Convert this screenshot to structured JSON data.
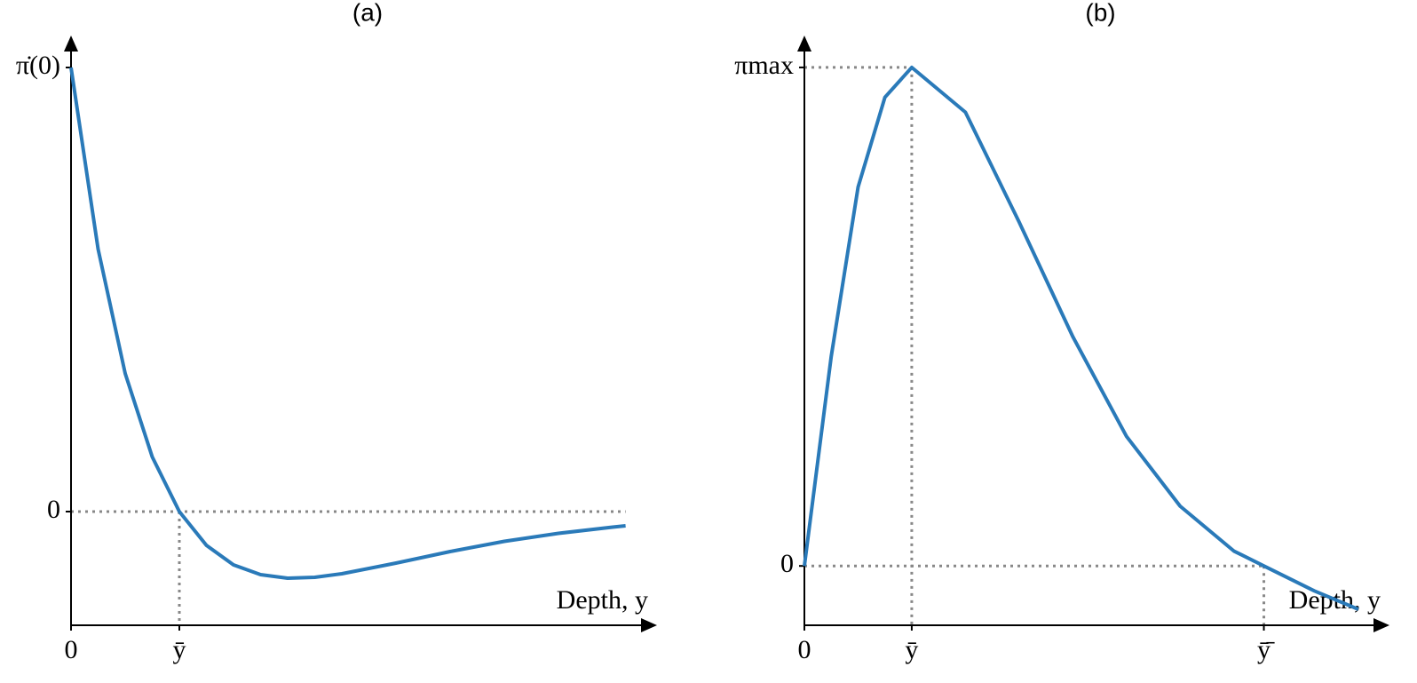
{
  "chart_data": [
    {
      "type": "line",
      "title": "(a)",
      "x_label": "Depth, y",
      "x": [
        0,
        0.25,
        0.5,
        0.75,
        1,
        1.25,
        1.5,
        1.75,
        2,
        2.25,
        2.5,
        3,
        3.5,
        4,
        4.5,
        5,
        5.12
      ],
      "series": [
        {
          "color": "#2a7ab9",
          "values": [
            1,
            0.591,
            0.311,
            0.123,
            0,
            -0.076,
            -0.12,
            -0.142,
            -0.15,
            -0.148,
            -0.14,
            -0.116,
            -0.09,
            -0.067,
            -0.049,
            -0.035,
            -0.032
          ]
        }
      ],
      "xlim": [
        0,
        5.41
      ],
      "ylim": [
        -0.256,
        1.072
      ],
      "xticks": [
        0,
        {
          "value": 1,
          "label": "ȳ"
        }
      ],
      "yticks": [
        0,
        {
          "value": 1,
          "label": "π̇(0)"
        }
      ],
      "grid": false
    },
    {
      "type": "line",
      "title": "(b)",
      "x_label": "Depth, y",
      "x": [
        0,
        0.25,
        0.5,
        0.75,
        1,
        1.5,
        2,
        2.5,
        3,
        3.5,
        4,
        4.28,
        4.75,
        5.16
      ],
      "series": [
        {
          "color": "#2a7ab9",
          "values": [
            0,
            0.42,
            0.76,
            0.94,
            1,
            0.91,
            0.69,
            0.46,
            0.26,
            0.12,
            0.03,
            0,
            -0.05,
            -0.087
          ]
        }
      ],
      "xlim": [
        0,
        5.45
      ],
      "ylim": [
        -0.119,
        1.064
      ],
      "xticks": [
        0,
        {
          "value": 1,
          "label": "ȳ"
        },
        {
          "value": 4.28,
          "label": "ȳ̄"
        }
      ],
      "yticks": [
        0,
        {
          "value": 1,
          "label": "πmax"
        }
      ],
      "grid": false
    }
  ]
}
